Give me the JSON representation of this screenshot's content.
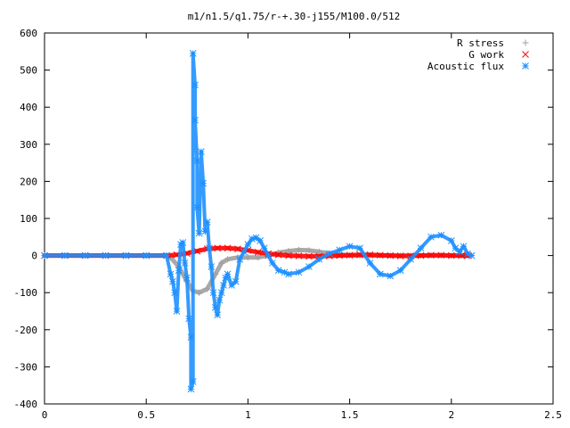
{
  "chart_data": {
    "type": "scatter",
    "title": "m1/n1.5/q1.75/r-+.30-j155/M100.0/512",
    "xlabel": "",
    "ylabel": "",
    "xlim": [
      0,
      2.5
    ],
    "ylim": [
      -400,
      600
    ],
    "x_ticks": [
      0,
      0.5,
      1,
      1.5,
      2,
      2.5
    ],
    "x_tick_labels": [
      "0",
      "0.5",
      "1",
      "1.5",
      "2",
      "2.5"
    ],
    "y_ticks": [
      -400,
      -300,
      -200,
      -100,
      0,
      100,
      200,
      300,
      400,
      500,
      600
    ],
    "y_tick_labels": [
      "-400",
      "-300",
      "-200",
      "-100",
      "0",
      "100",
      "200",
      "300",
      "400",
      "500",
      "600"
    ],
    "grid": false,
    "legend_position": "top-right",
    "series": [
      {
        "name": "R stress",
        "marker": "plus",
        "color": "#a0a0a0",
        "x": [
          0.0,
          0.1,
          0.2,
          0.3,
          0.4,
          0.5,
          0.6,
          0.62,
          0.66,
          0.7,
          0.73,
          0.76,
          0.8,
          0.84,
          0.87,
          0.9,
          0.95,
          1.0,
          1.05,
          1.1,
          1.15,
          1.2,
          1.25,
          1.3,
          1.35,
          1.4,
          1.45,
          1.5,
          1.55,
          1.6,
          1.65,
          1.7,
          1.75,
          1.8,
          1.85,
          1.9,
          1.95,
          2.0,
          2.05,
          2.08
        ],
        "y": [
          0,
          0,
          0,
          0,
          0,
          0,
          0,
          -5,
          -30,
          -70,
          -95,
          -100,
          -90,
          -50,
          -20,
          -10,
          -5,
          -5,
          -5,
          0,
          8,
          12,
          15,
          14,
          10,
          6,
          3,
          1,
          0,
          0,
          0,
          0,
          0,
          0,
          0,
          0,
          0,
          0,
          0,
          0
        ]
      },
      {
        "name": "G work",
        "marker": "cross",
        "color": "#ff0000",
        "x": [
          0.0,
          0.1,
          0.2,
          0.3,
          0.4,
          0.5,
          0.6,
          0.65,
          0.7,
          0.75,
          0.8,
          0.85,
          0.9,
          0.95,
          1.0,
          1.05,
          1.1,
          1.15,
          1.2,
          1.25,
          1.3,
          1.35,
          1.4,
          1.45,
          1.5,
          1.55,
          1.6,
          1.65,
          1.7,
          1.75,
          1.8,
          1.85,
          1.9,
          1.95,
          2.0,
          2.05,
          2.08
        ],
        "y": [
          0,
          0,
          0,
          0,
          0,
          0,
          0,
          2,
          6,
          12,
          18,
          20,
          20,
          18,
          14,
          9,
          5,
          2,
          0,
          -1,
          -2,
          -2,
          -1,
          0,
          1,
          2,
          2,
          1,
          0,
          -1,
          -1,
          0,
          1,
          1,
          0,
          0,
          0
        ]
      },
      {
        "name": "Acoustic flux",
        "marker": "star",
        "color": "#1e90ff",
        "x": [
          0.0,
          0.1,
          0.2,
          0.3,
          0.4,
          0.5,
          0.6,
          0.62,
          0.63,
          0.64,
          0.65,
          0.66,
          0.67,
          0.68,
          0.69,
          0.7,
          0.71,
          0.72,
          0.72,
          0.73,
          0.73,
          0.74,
          0.74,
          0.75,
          0.75,
          0.76,
          0.77,
          0.78,
          0.79,
          0.8,
          0.81,
          0.82,
          0.83,
          0.84,
          0.85,
          0.86,
          0.87,
          0.88,
          0.89,
          0.9,
          0.92,
          0.94,
          0.96,
          0.98,
          1.0,
          1.02,
          1.04,
          1.06,
          1.08,
          1.1,
          1.12,
          1.15,
          1.18,
          1.2,
          1.25,
          1.3,
          1.35,
          1.4,
          1.45,
          1.5,
          1.55,
          1.6,
          1.65,
          1.7,
          1.75,
          1.8,
          1.85,
          1.9,
          1.95,
          2.0,
          2.02,
          2.04,
          2.06,
          2.08,
          2.1
        ],
        "y": [
          0,
          0,
          0,
          0,
          0,
          0,
          0,
          -50,
          -70,
          -100,
          -150,
          -40,
          30,
          35,
          -20,
          -60,
          -170,
          -220,
          -360,
          -340,
          545,
          460,
          365,
          255,
          130,
          60,
          280,
          195,
          65,
          90,
          20,
          -30,
          -100,
          -140,
          -160,
          -120,
          -100,
          -80,
          -60,
          -50,
          -80,
          -70,
          -10,
          10,
          30,
          45,
          48,
          40,
          20,
          0,
          -20,
          -40,
          -45,
          -50,
          -45,
          -30,
          -10,
          5,
          15,
          25,
          20,
          -20,
          -50,
          -55,
          -40,
          -10,
          20,
          50,
          55,
          40,
          20,
          10,
          25,
          5,
          0
        ]
      }
    ]
  }
}
